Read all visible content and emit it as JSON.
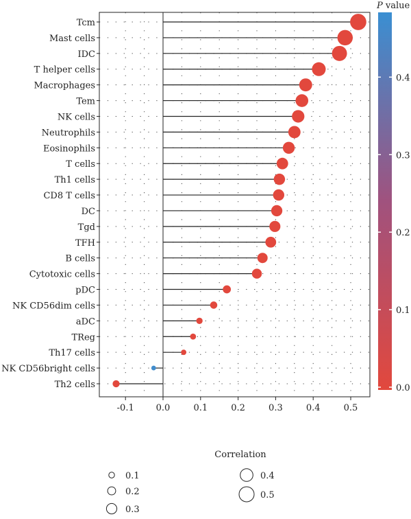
{
  "chart_data": {
    "type": "lollipop",
    "categories": [
      "Tcm",
      "Mast cells",
      "IDC",
      "T helper cells",
      "Macrophages",
      "Tem",
      "NK cells",
      "Neutrophils",
      "Eosinophils",
      "T cells",
      "Th1 cells",
      "CD8 T cells",
      "DC",
      "Tgd",
      "TFH",
      "B cells",
      "Cytotoxic cells",
      "pDC",
      "NK CD56dim cells",
      "aDC",
      "TReg",
      "Th17 cells",
      "NK CD56bright cells",
      "Th2 cells"
    ],
    "values": [
      0.52,
      0.485,
      0.47,
      0.415,
      0.38,
      0.37,
      0.36,
      0.35,
      0.335,
      0.318,
      0.31,
      0.308,
      0.303,
      0.298,
      0.287,
      0.265,
      0.25,
      0.17,
      0.135,
      0.097,
      0.08,
      0.055,
      -0.025,
      -0.125
    ],
    "p_values": [
      0.0,
      0.0,
      0.0,
      0.0,
      0.0,
      0.0,
      0.0,
      0.0,
      0.0,
      0.0,
      0.0,
      0.0,
      0.0,
      0.0,
      0.0,
      0.0,
      0.0,
      0.0,
      0.0,
      0.0,
      0.0,
      0.0,
      0.48,
      0.0
    ],
    "xlabel": "",
    "ylabel": "",
    "xlim": [
      -0.15,
      0.55
    ],
    "xticks": [
      "-0.1",
      "0.0",
      "0.1",
      "0.2",
      "0.3",
      "0.4",
      "0.5"
    ],
    "xtick_values": [
      -0.1,
      0.0,
      0.1,
      0.2,
      0.3,
      0.4,
      0.5
    ],
    "color_legend": {
      "title_italic": "P",
      "title_rest": " value",
      "range": [
        0.0,
        0.5
      ],
      "ticks": [
        "0.0",
        "0.1",
        "0.2",
        "0.3",
        "0.4"
      ],
      "tick_values": [
        0.0,
        0.1,
        0.2,
        0.3,
        0.4
      ],
      "color_low": "#e2483d",
      "color_high": "#3a8fd2"
    },
    "size_legend": {
      "title": "Correlation",
      "entries": [
        "0.1",
        "0.2",
        "0.3",
        "0.4",
        "0.5"
      ],
      "entry_values": [
        0.1,
        0.2,
        0.3,
        0.4,
        0.5
      ]
    },
    "grid": "dotted"
  }
}
